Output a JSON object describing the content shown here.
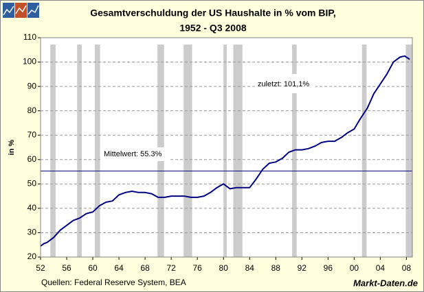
{
  "chart_data": {
    "type": "line",
    "title": "Gesamtverschuldung der US Haushalte in % vom BIP,",
    "subtitle": "1952 - Q3 2008",
    "y_label": "in %",
    "source": "Quellen: Federal Reserve System, BEA",
    "watermark": "Markt-Daten.de",
    "color": "#000080",
    "x": [
      1952,
      1952.5,
      1953,
      1954,
      1955,
      1956,
      1957,
      1958,
      1959,
      1960,
      1961,
      1962,
      1963,
      1964,
      1965,
      1966,
      1967,
      1968,
      1969,
      1970,
      1971,
      1972,
      1973,
      1974,
      1975,
      1976,
      1977,
      1978,
      1979,
      1980,
      1980.5,
      1981,
      1982,
      1983,
      1984,
      1985,
      1986,
      1987,
      1988,
      1989,
      1990,
      1991,
      1992,
      1993,
      1994,
      1995,
      1996,
      1997,
      1998,
      1999,
      2000,
      2001,
      2002,
      2003,
      2004,
      2005,
      2006,
      2007,
      2007.75,
      2008,
      2008.5
    ],
    "values": [
      24.5,
      25.5,
      26,
      28,
      31,
      33,
      35,
      36,
      37.8,
      38.5,
      41,
      42.5,
      43,
      45.5,
      46.5,
      47,
      46.5,
      46.5,
      46,
      44.5,
      44.5,
      45,
      45,
      45,
      44.5,
      44.5,
      45,
      46.5,
      48.5,
      50,
      49,
      48,
      48.5,
      48.5,
      48.5,
      52,
      56,
      58.5,
      59,
      60.5,
      63,
      64,
      64,
      64.5,
      65.5,
      67,
      67.5,
      67.5,
      69,
      71,
      72.5,
      77,
      81,
      87,
      91,
      95,
      100,
      102,
      102.5,
      102,
      101.1
    ],
    "recessions": [
      [
        1953.5,
        1954.3
      ],
      [
        1957.6,
        1958.3
      ],
      [
        1960.3,
        1961.1
      ],
      [
        1969.9,
        1970.9
      ],
      [
        1973.9,
        1975.2
      ],
      [
        1980.0,
        1980.5
      ],
      [
        1981.5,
        1982.9
      ],
      [
        1990.5,
        1991.2
      ],
      [
        2001.2,
        2001.9
      ],
      [
        2007.9,
        2008.9
      ]
    ],
    "mean": 55.3,
    "mean_label": "Mittelwert: 55.3%",
    "last_label": "zuletzt: 101,1%",
    "xlim": [
      1952,
      2008.9
    ],
    "xticks": [
      {
        "value": 1952,
        "label": "52"
      },
      {
        "value": 1956,
        "label": "56"
      },
      {
        "value": 1960,
        "label": "60"
      },
      {
        "value": 1964,
        "label": "64"
      },
      {
        "value": 1968,
        "label": "68"
      },
      {
        "value": 1972,
        "label": "72"
      },
      {
        "value": 1976,
        "label": "76"
      },
      {
        "value": 1980,
        "label": "80"
      },
      {
        "value": 1984,
        "label": "84"
      },
      {
        "value": 1988,
        "label": "88"
      },
      {
        "value": 1992,
        "label": "92"
      },
      {
        "value": 1996,
        "label": "96"
      },
      {
        "value": 2000,
        "label": "00"
      },
      {
        "value": 2004,
        "label": "04"
      },
      {
        "value": 2008,
        "label": "08"
      }
    ],
    "ylim": [
      20,
      110
    ],
    "yticks": [
      20,
      30,
      40,
      50,
      60,
      70,
      80,
      90,
      100,
      110
    ],
    "grid": true
  }
}
